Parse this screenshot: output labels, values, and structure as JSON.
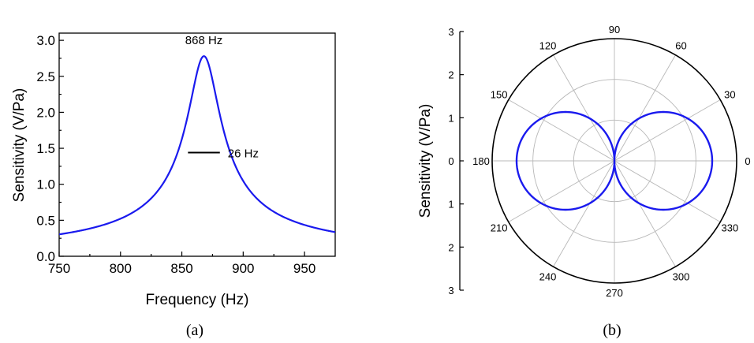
{
  "chart_data": [
    {
      "id": "a",
      "type": "line",
      "caption": "(a)",
      "xlabel": "Frequency (Hz)",
      "ylabel": "Sensitivity (V/Pa)",
      "xlim": [
        750,
        975
      ],
      "ylim": [
        0.0,
        3.1
      ],
      "x_ticks": [
        "750",
        "800",
        "850",
        "900",
        "950"
      ],
      "y_ticks": [
        "0.0",
        "0.5",
        "1.0",
        "1.5",
        "2.0",
        "2.5",
        "3.0"
      ],
      "series_color": "#1a1aee",
      "resonance": {
        "f0": 868,
        "fwhm": 26,
        "peak": 2.78
      },
      "x": [
        750,
        760,
        770,
        780,
        790,
        800,
        810,
        820,
        830,
        840,
        845,
        850,
        855,
        858,
        861,
        864,
        866,
        868,
        870,
        872,
        875,
        878,
        881,
        885,
        890,
        895,
        900,
        910,
        920,
        930,
        940,
        950,
        960,
        975
      ],
      "y": [
        0.13,
        0.15,
        0.17,
        0.19,
        0.22,
        0.25,
        0.29,
        0.35,
        0.44,
        0.58,
        0.72,
        0.93,
        1.26,
        1.58,
        2.0,
        2.45,
        2.66,
        2.78,
        2.66,
        2.45,
        2.0,
        1.58,
        1.24,
        0.92,
        0.7,
        0.57,
        0.48,
        0.37,
        0.3,
        0.25,
        0.22,
        0.2,
        0.18,
        0.17
      ],
      "annotations": [
        {
          "text": "868 Hz",
          "x": 868,
          "y": 2.78
        },
        {
          "text": "26 Hz",
          "x0": 855,
          "x1": 881,
          "y": 1.44
        }
      ]
    },
    {
      "id": "b",
      "type": "polar",
      "caption": "(b)",
      "ylabel": "Sensitivity (V/Pa)",
      "rmax": 3,
      "r_ticks_upper": [
        "3",
        "2",
        "1",
        "0"
      ],
      "r_ticks_lower": [
        "1",
        "2",
        "3"
      ],
      "angle_labels": [
        "0",
        "30",
        "60",
        "90",
        "120",
        "150",
        "180",
        "210",
        "240",
        "270",
        "300",
        "330"
      ],
      "grid_circles": [
        1,
        2
      ],
      "series_color": "#1a1aee",
      "pattern": "r = 2.4 |cos(theta)|",
      "max_r": 2.4
    }
  ]
}
